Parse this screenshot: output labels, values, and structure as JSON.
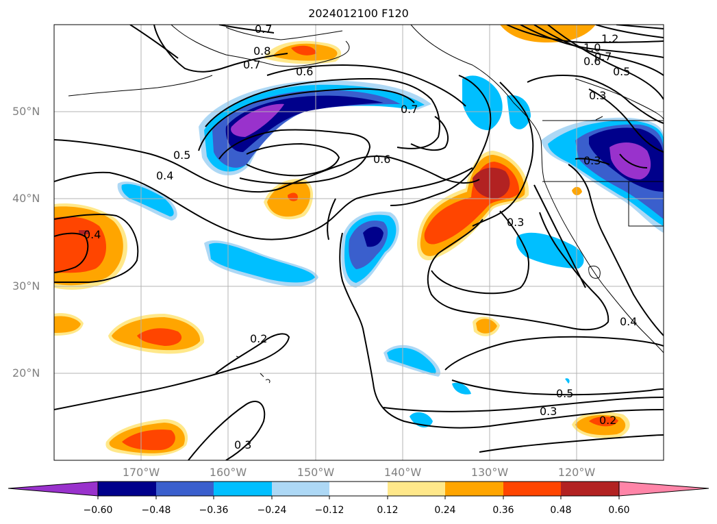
{
  "title": "2024012100 F120",
  "lat_labels": [
    "50°N",
    "40°N",
    "30°N",
    "20°N"
  ],
  "lon_labels": [
    "170°W",
    "160°W",
    "150°W",
    "140°W",
    "130°W",
    "120°W"
  ],
  "contour_labels": [
    "0.7",
    "0.8",
    "0.7",
    "0.6",
    "0.5",
    "0.7",
    "0.6",
    "0.4",
    "0.4",
    "0.3",
    "0.2",
    "0.3",
    "0.5",
    "0.3",
    "0.2",
    "0.4",
    "0.3",
    "0.3",
    "0.5",
    "1.2",
    "1.0",
    "0.7",
    "0.6"
  ],
  "colorbar": {
    "ticks": [
      "−0.60",
      "−0.48",
      "−0.36",
      "−0.24",
      "−0.12",
      "0.12",
      "0.24",
      "0.36",
      "0.48",
      "0.60"
    ],
    "colors": [
      "#9932cc",
      "#00008b",
      "#3a5fcd",
      "#00bfff",
      "#add8f5",
      "#ffffff",
      "#ffe88a",
      "#ffa500",
      "#ff4500",
      "#b22222",
      "#ff85a8"
    ]
  },
  "colors": {
    "neg_strong": "#00008b",
    "neg_med": "#3a5fcd",
    "neg_light": "#00bfff",
    "neg_pale": "#add8f5",
    "pos_pale": "#ffe88a",
    "pos_light": "#ffa500",
    "pos_med": "#ff4500",
    "pos_strong": "#b22222"
  }
}
